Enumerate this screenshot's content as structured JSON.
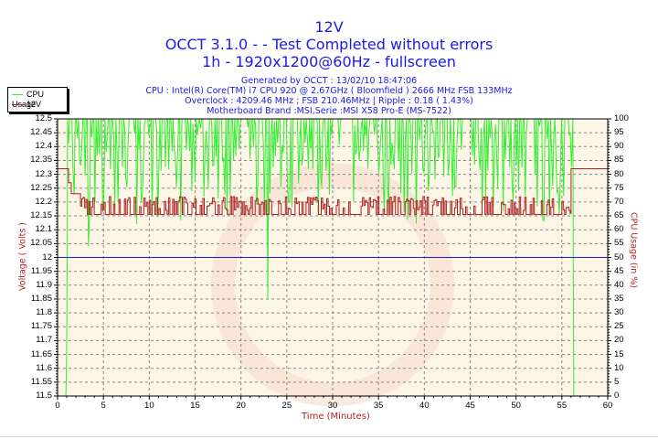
{
  "header": {
    "title": "12V",
    "line2": "OCCT 3.1.0 -  - Test Completed without errors",
    "line3": "1h - 1920x1200@60Hz - fullscreen",
    "generated": "Generated by OCCT : 13/02/10 18:47:06",
    "cpu": "CPU : Intel(R) Core(TM) i7 CPU 920 @ 2.67GHz ( Bloomfield ) 2666 MHz FSB 133MHz",
    "overclock": "Overclock : 4209.46 MHz ; FSB 210.46MHz | Ripple : 0.18 ( 1.43%)",
    "motherboard": "Motherboard Brand :MSI,Serie :MSI X58 Pro-E (MS-7522)"
  },
  "legend": {
    "items": [
      {
        "label": "CPU Usage",
        "color": "#33ee33"
      },
      {
        "label": "12V",
        "color": "#b22222"
      }
    ]
  },
  "colors": {
    "plot_bg": "#fdf5e6",
    "cpu": "#33ee33",
    "voltage": "#aa2222",
    "reference": "#1a1ae6",
    "grid": "#888888"
  },
  "chart_data": {
    "type": "line",
    "title": "12V",
    "xlabel": "Time (Minutes)",
    "ylabel": "Voltage ( Volts )",
    "y2label": "CPU Usage (in %)",
    "xlim": [
      0,
      60
    ],
    "ylim": [
      11.5,
      12.5
    ],
    "y2lim": [
      0,
      100
    ],
    "x_ticks": [
      "0",
      "5",
      "10",
      "15",
      "20",
      "25",
      "30",
      "35",
      "40",
      "45",
      "50",
      "55",
      "60"
    ],
    "y_ticks": [
      "12.5",
      "12.45",
      "12.4",
      "12.35",
      "12.3",
      "12.25",
      "12.2",
      "12.15",
      "12.1",
      "12.05",
      "12",
      "11.95",
      "11.9",
      "11.85",
      "11.8",
      "11.75",
      "11.7",
      "11.65",
      "11.6",
      "11.55",
      "11.5"
    ],
    "y2_ticks": [
      "100",
      "95",
      "90",
      "85",
      "80",
      "75",
      "70",
      "65",
      "60",
      "55",
      "50",
      "45",
      "40",
      "35",
      "30",
      "25",
      "20",
      "15",
      "10",
      "5",
      "0"
    ],
    "grid": true,
    "legend_position": "top-left",
    "reference_line": {
      "y": 12.0,
      "color": "#1a1ae6"
    },
    "series": [
      {
        "name": "12V",
        "axis": "left",
        "summary": "12.32 V idle (0–1.2 min and 56–60 min); during load oscillates between ~12.15 and ~12.22 V",
        "x": [
          0,
          1.2,
          1.2,
          1.5,
          1.5,
          2.5,
          56.0,
          56.0,
          60
        ],
        "values": [
          12.32,
          12.32,
          12.27,
          12.27,
          12.23,
          12.19,
          12.16,
          12.32,
          12.32
        ],
        "load_range": [
          12.15,
          12.22
        ]
      },
      {
        "name": "CPU Usage",
        "axis": "right",
        "summary": "Near 100% from ~1 min to ~56.2 min with frequent dips to 60–80%; a few deep dips",
        "x": [
          0,
          0.9,
          1.0,
          1.2,
          3.5,
          4.0,
          15.0,
          23.0,
          56.2,
          56.3,
          60
        ],
        "values": [
          0,
          0,
          20,
          100,
          55,
          28,
          40,
          35,
          100,
          0,
          0
        ],
        "notable_dips": [
          {
            "x": 3.4,
            "value": 54
          },
          {
            "x": 3.9,
            "value": 29
          },
          {
            "x": 14.7,
            "value": 40
          },
          {
            "x": 22.9,
            "value": 35
          },
          {
            "x": 56.2,
            "value": 0
          }
        ]
      }
    ]
  }
}
